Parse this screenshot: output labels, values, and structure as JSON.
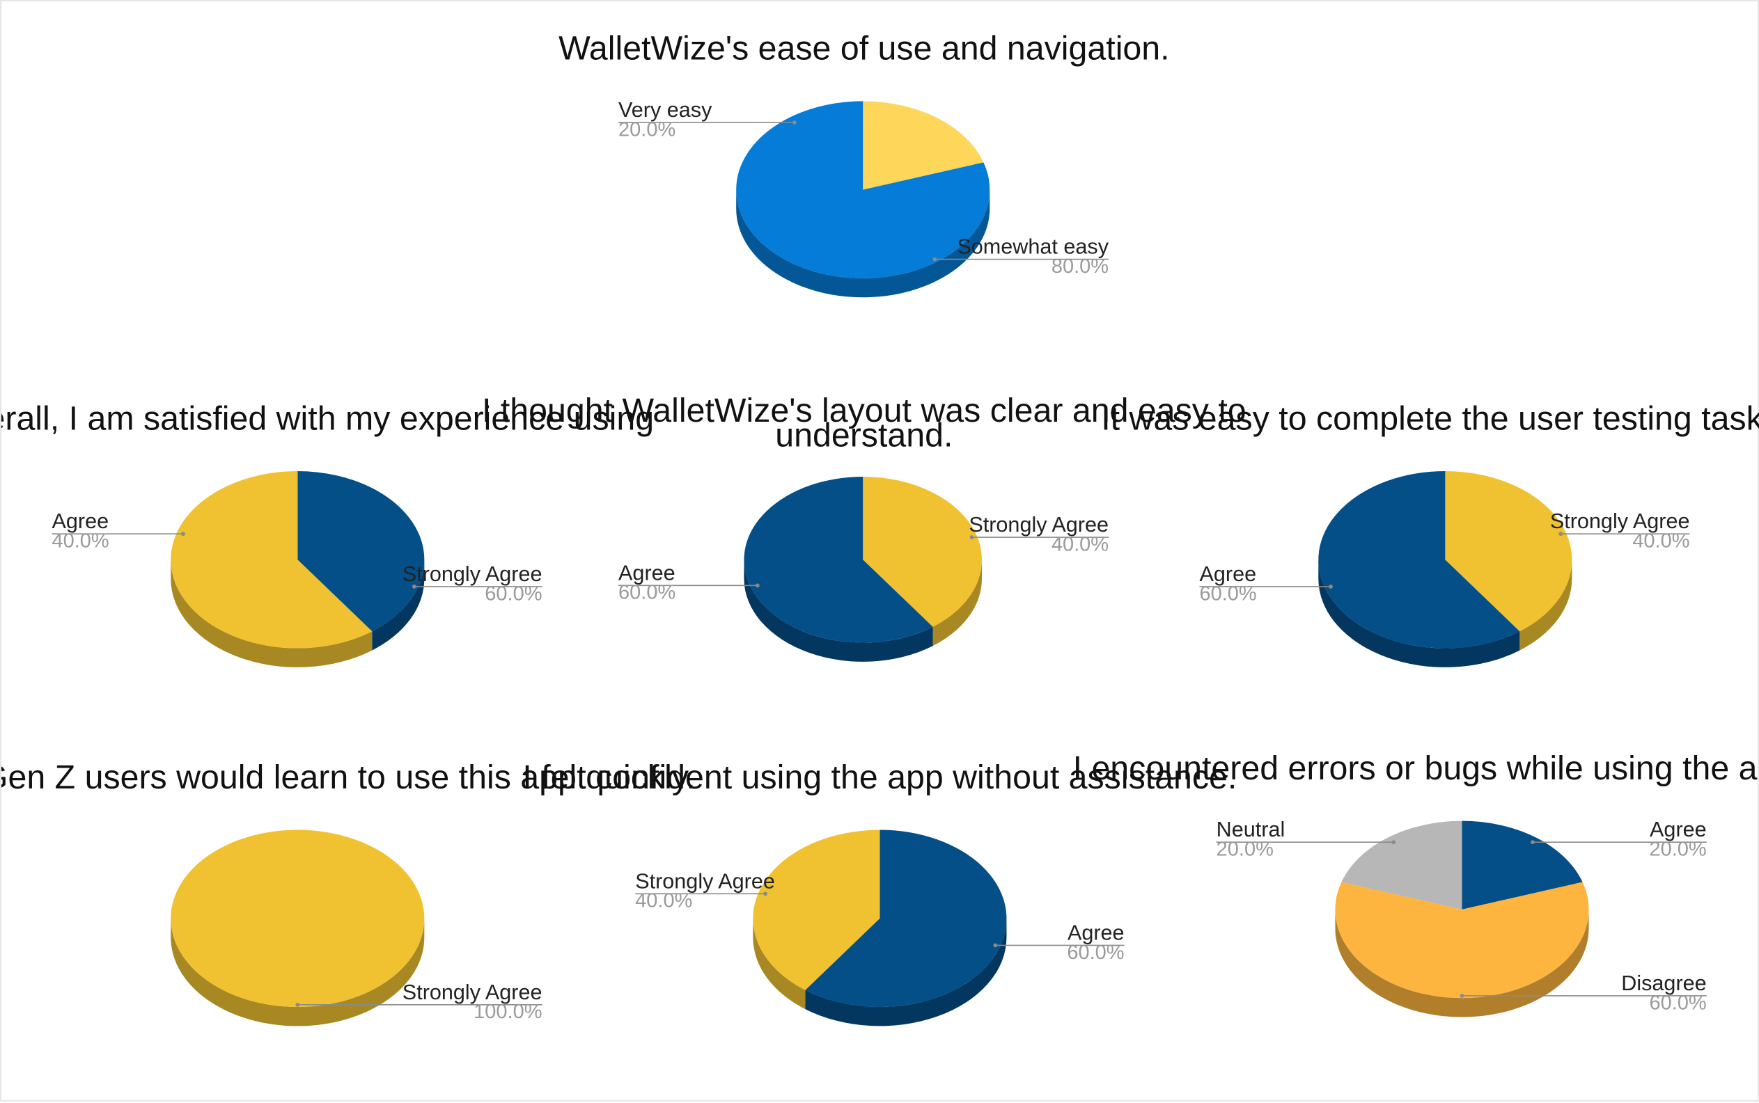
{
  "chart_data": [
    {
      "type": "pie",
      "title": "WalletWize's ease of use and navigation.",
      "slices": [
        {
          "label": "Very easy",
          "value": 20.0,
          "value_label": "20.0%",
          "color": "#FDD65A"
        },
        {
          "label": "Somewhat easy",
          "value": 80.0,
          "value_label": "80.0%",
          "color": "#047CD8"
        }
      ]
    },
    {
      "type": "pie",
      "title": "Overall, I am satisfied with my experience using",
      "slices": [
        {
          "label": "Agree",
          "value": 40.0,
          "value_label": "40.0%",
          "color": "#044F88"
        },
        {
          "label": "Strongly Agree",
          "value": 60.0,
          "value_label": "60.0%",
          "color": "#F0C231"
        }
      ]
    },
    {
      "type": "pie",
      "title": "I thought WalletWize's layout was clear and easy to understand.",
      "slices": [
        {
          "label": "Strongly Agree",
          "value": 40.0,
          "value_label": "40.0%",
          "color": "#F0C231"
        },
        {
          "label": "Agree",
          "value": 60.0,
          "value_label": "60.0%",
          "color": "#044F88"
        }
      ]
    },
    {
      "type": "pie",
      "title": "It was easy to complete the user testing tasks.",
      "slices": [
        {
          "label": "Strongly Agree",
          "value": 40.0,
          "value_label": "40.0%",
          "color": "#F0C231"
        },
        {
          "label": "Agree",
          "value": 60.0,
          "value_label": "60.0%",
          "color": "#044F88"
        }
      ]
    },
    {
      "type": "pie",
      "title": "Most Gen Z users would learn to use this app quickly.",
      "slices": [
        {
          "label": "Strongly Agree",
          "value": 100.0,
          "value_label": "100.0%",
          "color": "#F0C231"
        }
      ]
    },
    {
      "type": "pie",
      "title": "I felt confident using the app without assistance.",
      "slices": [
        {
          "label": "Agree",
          "value": 60.0,
          "value_label": "60.0%",
          "color": "#044F88"
        },
        {
          "label": "Strongly Agree",
          "value": 40.0,
          "value_label": "40.0%",
          "color": "#F0C231"
        }
      ]
    },
    {
      "type": "pie",
      "title": "I encountered errors or bugs while using the app.",
      "slices": [
        {
          "label": "Agree",
          "value": 20.0,
          "value_label": "20.0%",
          "color": "#044F88"
        },
        {
          "label": "Disagree",
          "value": 60.0,
          "value_label": "60.0%",
          "color": "#FDB53F"
        },
        {
          "label": "Neutral",
          "value": 20.0,
          "value_label": "20.0%",
          "color": "#B7B7B7"
        }
      ]
    }
  ]
}
